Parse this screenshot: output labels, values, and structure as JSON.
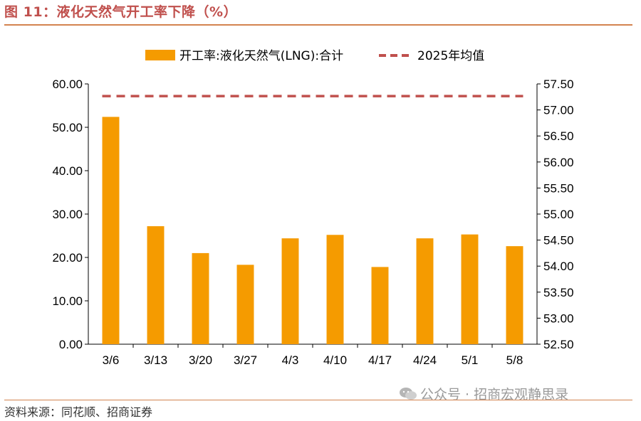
{
  "header": {
    "title": "图 11：液化天然气开工率下降（%）"
  },
  "footer": {
    "source": "资料来源：同花顺、招商证券"
  },
  "watermark": {
    "text": "公众号 · 招商宏观静思录",
    "icon": "wechat-icon"
  },
  "colors": {
    "bar": "#f59b00",
    "avg_line": "#c0504d",
    "title": "#c0504d",
    "rule": "#d3834f"
  },
  "chart_data": {
    "type": "bar",
    "categories": [
      "3/6",
      "3/13",
      "3/20",
      "3/27",
      "4/3",
      "4/10",
      "4/17",
      "4/24",
      "5/1",
      "5/8"
    ],
    "series": [
      {
        "name": "开工率:液化天然气(LNG):合计",
        "type": "bar",
        "axis": "left",
        "values": [
          52.4,
          27.2,
          21.0,
          18.3,
          24.4,
          25.2,
          17.8,
          24.4,
          25.3,
          22.6
        ]
      },
      {
        "name": "2025年均值",
        "type": "dashed-line",
        "axis": "left",
        "value": 57.2
      }
    ],
    "y_left": {
      "ylim": [
        0,
        60
      ],
      "ticks": [
        "0.00",
        "10.00",
        "20.00",
        "30.00",
        "40.00",
        "50.00",
        "60.00"
      ]
    },
    "y_right": {
      "ylim": [
        52.5,
        57.5
      ],
      "ticks": [
        "52.50",
        "53.00",
        "53.50",
        "54.00",
        "54.50",
        "55.00",
        "55.50",
        "56.00",
        "56.50",
        "57.00",
        "57.50"
      ]
    },
    "legend_position": "top",
    "grid": false
  }
}
